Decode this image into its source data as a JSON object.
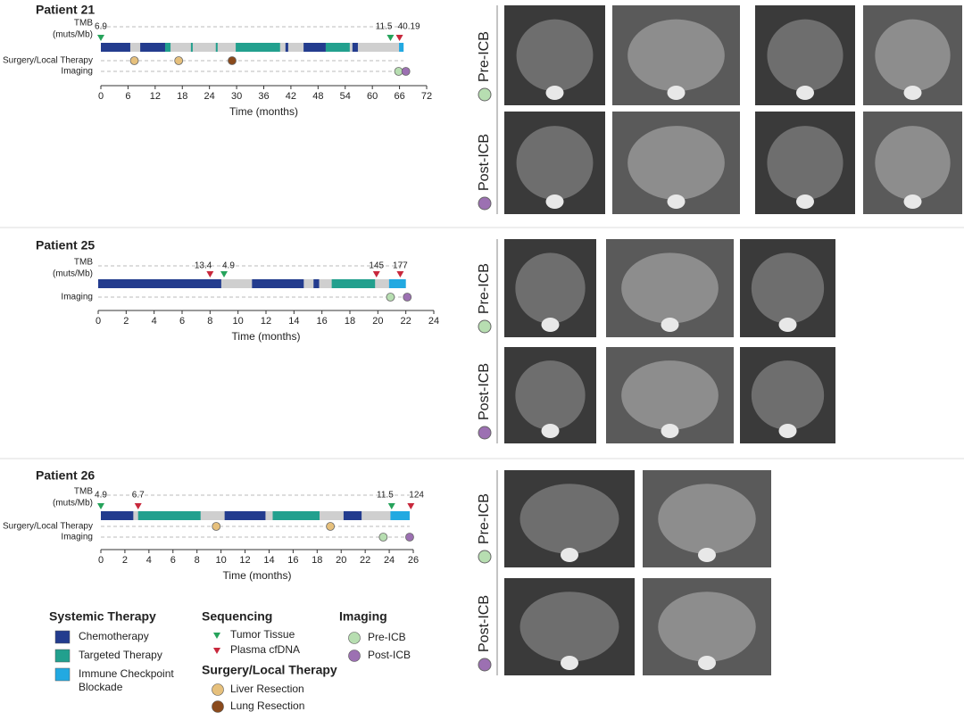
{
  "chart_data": [
    {
      "type": "timeline",
      "title": "Patient 21",
      "xlabel": "Time (months)",
      "row_labels": {
        "tmb": [
          "TMB",
          "(muts/Mb)"
        ],
        "surgery": "Surgery/Local Therapy",
        "imaging": "Imaging"
      },
      "xlim": [
        0,
        72
      ],
      "xticks": [
        0,
        6,
        12,
        18,
        24,
        30,
        36,
        42,
        48,
        54,
        60,
        66,
        72
      ],
      "chemotherapy": [
        [
          0,
          6.5
        ],
        [
          8.7,
          14.2
        ],
        [
          40.8,
          41.4
        ],
        [
          44.8,
          49.7
        ],
        [
          55.6,
          56.8
        ]
      ],
      "targeted": [
        [
          14.2,
          15.4
        ],
        [
          19.9,
          20.3
        ],
        [
          25.4,
          25.8
        ],
        [
          29.8,
          39.6
        ],
        [
          49.7,
          55
        ]
      ],
      "icb": [
        [
          65.9,
          66.9
        ]
      ],
      "tumor_tissue": [
        {
          "time": 0,
          "value": 6.9
        },
        {
          "time": 64,
          "value": 11.5
        }
      ],
      "plasma_cfdna": [
        {
          "time": 66,
          "value": 40.19
        }
      ],
      "liver_resection": [
        7.4,
        17.2
      ],
      "lung_resection": [
        29
      ],
      "pre_icb": [
        65.8
      ],
      "post_icb": [
        67.4
      ]
    },
    {
      "type": "timeline",
      "title": "Patient 25",
      "xlabel": "Time (months)",
      "row_labels": {
        "tmb": [
          "TMB",
          "(muts/Mb)"
        ],
        "imaging": "Imaging"
      },
      "xlim": [
        0,
        24
      ],
      "xticks": [
        0,
        2,
        4,
        6,
        8,
        10,
        12,
        14,
        16,
        18,
        20,
        22,
        24
      ],
      "chemotherapy": [
        [
          0,
          8.8
        ],
        [
          11,
          14.7
        ],
        [
          15.4,
          15.8
        ]
      ],
      "targeted": [
        [
          16.7,
          19.8
        ]
      ],
      "icb": [
        [
          20.8,
          22
        ]
      ],
      "tumor_tissue": [
        {
          "time": 9,
          "value": 4.9
        }
      ],
      "plasma_cfdna": [
        {
          "time": 8,
          "value": 13.4
        },
        {
          "time": 19.9,
          "value": 145
        },
        {
          "time": 21.6,
          "value": 177
        }
      ],
      "pre_icb": [
        20.9
      ],
      "post_icb": [
        22.1
      ]
    },
    {
      "type": "timeline",
      "title": "Patient 26",
      "xlabel": "Time (months)",
      "row_labels": {
        "tmb": [
          "TMB",
          "(muts/Mb)"
        ],
        "surgery": "Surgery/Local Therapy",
        "imaging": "Imaging"
      },
      "xlim": [
        0,
        26
      ],
      "xticks": [
        0,
        2,
        4,
        6,
        8,
        10,
        12,
        14,
        16,
        18,
        20,
        22,
        24,
        26
      ],
      "chemotherapy": [
        [
          0,
          2.7
        ],
        [
          10.3,
          13.7
        ],
        [
          20.2,
          21.7
        ]
      ],
      "targeted": [
        [
          3.1,
          8.3
        ],
        [
          14.3,
          18.2
        ]
      ],
      "icb": [
        [
          24.1,
          25.7
        ]
      ],
      "tumor_tissue": [
        {
          "time": 0,
          "value": 4.9
        },
        {
          "time": 24.2,
          "value": 11.5
        }
      ],
      "plasma_cfdna": [
        {
          "time": 3.1,
          "value": 6.7
        },
        {
          "time": 25.8,
          "value": 124
        }
      ],
      "liver_resection": [
        9.6,
        19.1
      ],
      "pre_icb": [
        23.5
      ],
      "post_icb": [
        25.7
      ]
    }
  ],
  "legend": {
    "systemic": {
      "title": "Systemic Therapy",
      "chemotherapy": {
        "label": [
          "Chemotherapy"
        ],
        "color": "#233c8e"
      },
      "targeted": {
        "label": [
          "Targeted Therapy"
        ],
        "color": "#22a08e"
      },
      "icb": {
        "label": [
          "Immune Checkpoint",
          "Blockade"
        ],
        "color": "#22a9e1"
      }
    },
    "sequencing": {
      "title": "Sequencing",
      "tumor_tissue": {
        "label": "Tumor Tissue",
        "color": "#26a35b"
      },
      "plasma_cfdna": {
        "label": "Plasma cfDNA",
        "color": "#c8283c"
      }
    },
    "surgery": {
      "title": "Surgery/Local Therapy",
      "liver_resection": {
        "label": "Liver Resection",
        "color": "#e6c07c"
      },
      "lung_resection": {
        "label": "Lung Resection",
        "color": "#8a4a1c"
      }
    },
    "imaging": {
      "title": "Imaging",
      "pre_icb": {
        "label": "Pre-ICB",
        "color": "#b7deb1"
      },
      "post_icb": {
        "label": "Post-ICB",
        "color": "#9c70b2"
      }
    }
  },
  "image_panels": [
    {
      "pre": "Pre-ICB",
      "post": "Post-ICB"
    },
    {
      "pre": "Pre-ICB",
      "post": "Post-ICB"
    },
    {
      "pre": "Pre-ICB",
      "post": "Post-ICB"
    }
  ]
}
